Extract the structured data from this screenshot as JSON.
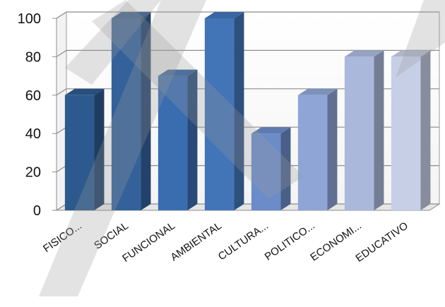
{
  "chart_data": {
    "type": "bar",
    "categories": [
      "FISICO...",
      "SOCIAL",
      "FUNCIONAL",
      "AMBIENTAL",
      "CULTURA...",
      "POLITICO...",
      "ECONOMI...",
      "EDUCATIVO"
    ],
    "values": [
      60,
      100,
      70,
      100,
      40,
      60,
      80,
      80
    ],
    "ylim": [
      0,
      100
    ],
    "yticks": [
      0,
      20,
      40,
      60,
      80,
      100
    ],
    "grid": true,
    "title": "",
    "xlabel": "",
    "ylabel": "",
    "bar_colors": [
      "#2d5a8e",
      "#34619a",
      "#3a6db0",
      "#4275b8",
      "#6b8cc8",
      "#8ea5d6",
      "#aab8dc",
      "#c6cfe6"
    ]
  }
}
